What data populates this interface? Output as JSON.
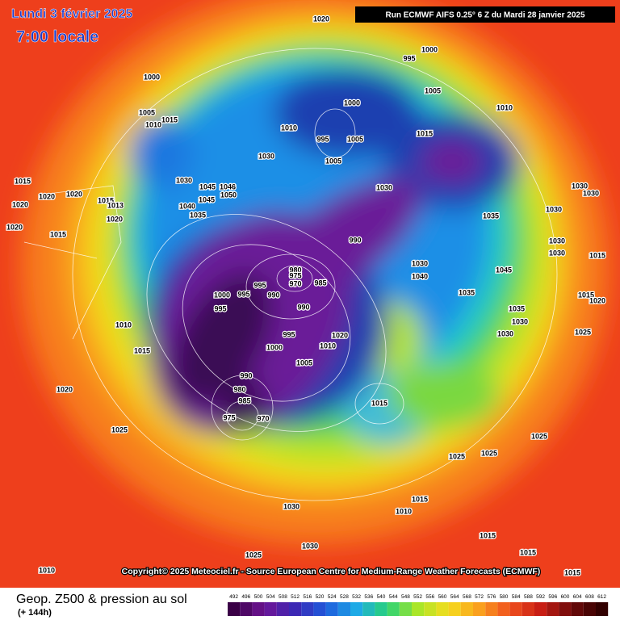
{
  "header": {
    "date": "Lundi 3 février 2025",
    "time": "7:00 locale",
    "run": "Run ECMWF AIFS 0.25° 6 Z du Mardi 28 janvier 2025"
  },
  "copyright": "Copyright© 2025 Meteociel.fr - Source European Centre for Medium-Range Weather Forecasts (ECMWF)",
  "footer": {
    "title": "Geop. Z500 & pression au sol",
    "lead": "(+ 144h)",
    "scale": [
      492,
      496,
      500,
      504,
      508,
      512,
      516,
      520,
      524,
      528,
      532,
      536,
      540,
      544,
      548,
      552,
      556,
      560,
      564,
      568,
      572,
      576,
      580,
      584,
      588,
      592,
      596,
      600,
      604,
      608,
      612
    ]
  },
  "map": {
    "pressure_labels": [
      "1020",
      "1000",
      "995",
      "1000",
      "1005",
      "1000",
      "1010",
      "1005",
      "1015",
      "1010",
      "1010",
      "995",
      "1005",
      "1015",
      "1030",
      "1005",
      "1030",
      "1015",
      "1045",
      "1046",
      "1030",
      "1030",
      "1020",
      "1020",
      "1050",
      "1045",
      "1015",
      "1013",
      "1040",
      "1030",
      "1030",
      "1035",
      "1035",
      "1020",
      "1020",
      "1020",
      "1015",
      "990",
      "1030",
      "1030",
      "1015",
      "1045",
      "1030",
      "1040",
      "980",
      "975",
      "970",
      "985",
      "995",
      "1000",
      "995",
      "990",
      "995",
      "990",
      "1035",
      "1035",
      "1030",
      "995",
      "1000",
      "1005",
      "1010",
      "1020",
      "1030",
      "1015",
      "1010",
      "990",
      "980",
      "985",
      "975",
      "970",
      "1015",
      "1020",
      "1025",
      "1025",
      "1025",
      "1025",
      "1015",
      "1010",
      "1030",
      "1030",
      "1025",
      "1015",
      "1015",
      "1010",
      "1015",
      "1015",
      "1020",
      "1025"
    ]
  }
}
